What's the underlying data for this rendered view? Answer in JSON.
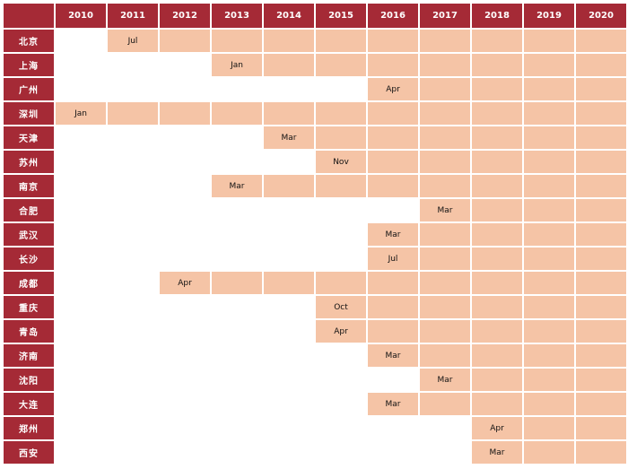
{
  "chart_data": {
    "type": "table",
    "years": [
      "2010",
      "2011",
      "2012",
      "2013",
      "2014",
      "2015",
      "2016",
      "2017",
      "2018",
      "2019",
      "2020"
    ],
    "fill_color": "#f5c4a6",
    "header_color": "#a52a36",
    "rows": [
      {
        "city": "北京",
        "start_year": "2011",
        "month": "Jul"
      },
      {
        "city": "上海",
        "start_year": "2013",
        "month": "Jan"
      },
      {
        "city": "广州",
        "start_year": "2016",
        "month": "Apr"
      },
      {
        "city": "深圳",
        "start_year": "2010",
        "month": "Jan"
      },
      {
        "city": "天津",
        "start_year": "2014",
        "month": "Mar"
      },
      {
        "city": "苏州",
        "start_year": "2015",
        "month": "Nov"
      },
      {
        "city": "南京",
        "start_year": "2013",
        "month": "Mar"
      },
      {
        "city": "合肥",
        "start_year": "2017",
        "month": "Mar"
      },
      {
        "city": "武汉",
        "start_year": "2016",
        "month": "Mar"
      },
      {
        "city": "长沙",
        "start_year": "2016",
        "month": "Jul"
      },
      {
        "city": "成都",
        "start_year": "2012",
        "month": "Apr"
      },
      {
        "city": "重庆",
        "start_year": "2015",
        "month": "Oct"
      },
      {
        "city": "青岛",
        "start_year": "2015",
        "month": "Apr"
      },
      {
        "city": "济南",
        "start_year": "2016",
        "month": "Mar"
      },
      {
        "city": "沈阳",
        "start_year": "2017",
        "month": "Mar"
      },
      {
        "city": "大连",
        "start_year": "2016",
        "month": "Mar"
      },
      {
        "city": "郑州",
        "start_year": "2018",
        "month": "Apr"
      },
      {
        "city": "西安",
        "start_year": "2018",
        "month": "Mar"
      }
    ]
  }
}
